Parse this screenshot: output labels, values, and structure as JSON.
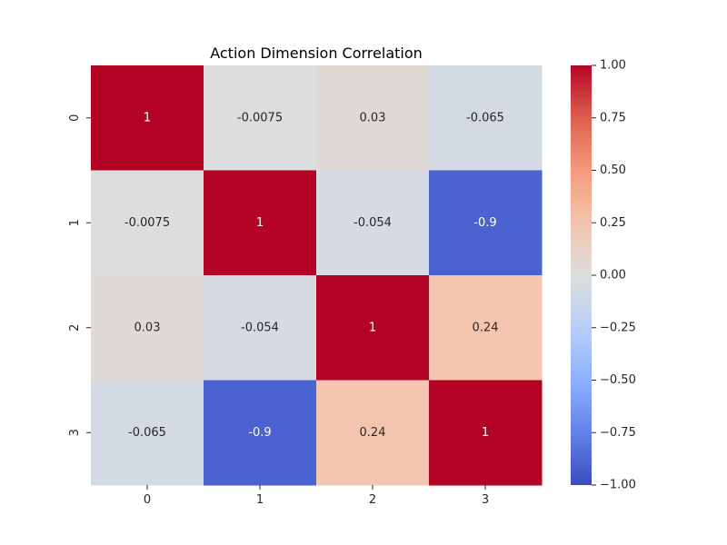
{
  "chart_data": {
    "type": "heatmap",
    "title": "Action Dimension Correlation",
    "xlabel": "",
    "ylabel": "",
    "x_categories": [
      "0",
      "1",
      "2",
      "3"
    ],
    "y_categories": [
      "0",
      "1",
      "2",
      "3"
    ],
    "values": [
      [
        1,
        -0.0075,
        0.03,
        -0.065
      ],
      [
        -0.0075,
        1,
        -0.054,
        -0.9
      ],
      [
        0.03,
        -0.054,
        1,
        0.24
      ],
      [
        -0.065,
        -0.9,
        0.24,
        1
      ]
    ],
    "annotations": [
      [
        "1",
        "-0.0075",
        "0.03",
        "-0.065"
      ],
      [
        "-0.0075",
        "1",
        "-0.054",
        "-0.9"
      ],
      [
        "0.03",
        "-0.054",
        "1",
        "0.24"
      ],
      [
        "-0.065",
        "-0.9",
        "0.24",
        "1"
      ]
    ],
    "colormap": "coolwarm",
    "vmin": -1.0,
    "vmax": 1.0,
    "colorbar_ticks": [
      "1.00",
      "0.75",
      "0.50",
      "0.25",
      "0.00",
      "−0.25",
      "−0.50",
      "−0.75",
      "−1.00"
    ],
    "colorbar_tick_values": [
      1.0,
      0.75,
      0.5,
      0.25,
      0.0,
      -0.25,
      -0.5,
      -0.75,
      -1.0
    ],
    "grid": false,
    "legend": "colorbar-right"
  }
}
